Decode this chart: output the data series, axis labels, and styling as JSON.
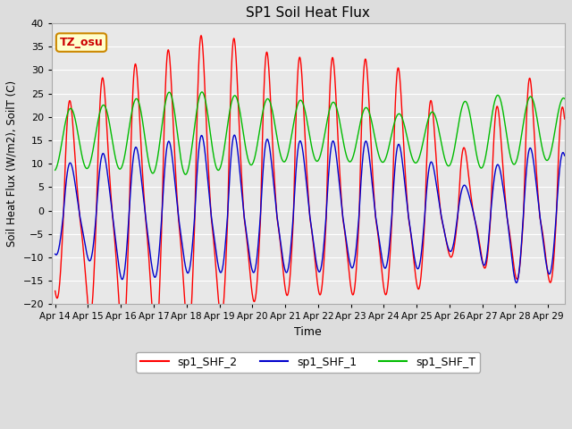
{
  "title": "SP1 Soil Heat Flux",
  "xlabel": "Time",
  "ylabel": "Soil Heat Flux (W/m2), SoilT (C)",
  "ylim": [
    -20,
    40
  ],
  "xlim_start_days": 0,
  "xlim_end_days": 15.5,
  "x_tick_labels": [
    "Apr 14",
    "Apr 15",
    "Apr 16",
    "Apr 17",
    "Apr 18",
    "Apr 19",
    "Apr 20",
    "Apr 21",
    "Apr 22",
    "Apr 23",
    "Apr 24",
    "Apr 25",
    "Apr 26",
    "Apr 27",
    "Apr 28",
    "Apr 29"
  ],
  "yticks": [
    -20,
    -15,
    -10,
    -5,
    0,
    5,
    10,
    15,
    20,
    25,
    30,
    35,
    40
  ],
  "color_shf2": "#ff0000",
  "color_shf1": "#0000cc",
  "color_shfT": "#00bb00",
  "legend_labels": [
    "sp1_SHF_2",
    "sp1_SHF_1",
    "sp1_SHF_T"
  ],
  "tz_label": "TZ_osu",
  "tz_bg": "#ffffcc",
  "tz_border": "#cc8800",
  "bg_color": "#dddddd",
  "plot_bg": "#e8e8e8",
  "grid_color": "#ffffff",
  "period_days": 1.0
}
